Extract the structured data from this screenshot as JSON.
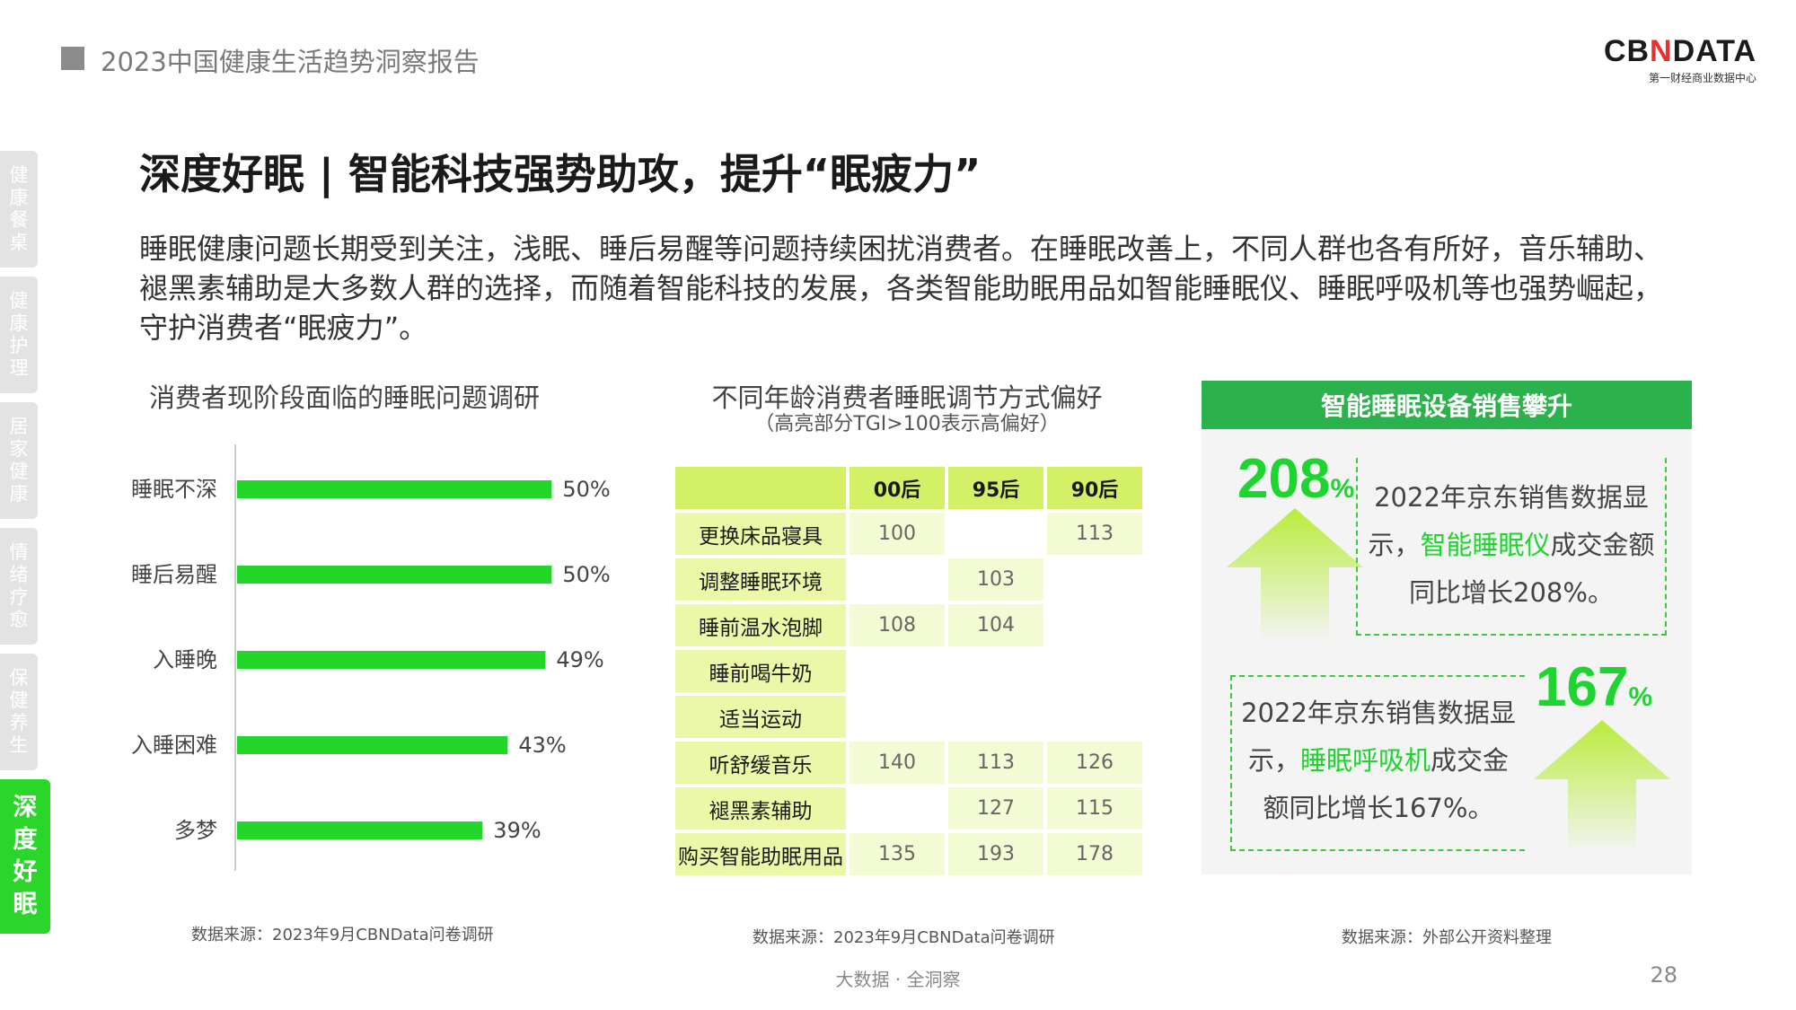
{
  "header": {
    "title": "2023中国健康生活趋势洞察报告"
  },
  "logo": {
    "pre": "CB",
    "mark": "N",
    "post": "DATA",
    "subtitle": "第一财经商业数据中心"
  },
  "sidenav": [
    {
      "label": [
        "健",
        "康",
        "餐",
        "桌"
      ],
      "active": false
    },
    {
      "label": [
        "健",
        "康",
        "护",
        "理"
      ],
      "active": false
    },
    {
      "label": [
        "居",
        "家",
        "健",
        "康"
      ],
      "active": false
    },
    {
      "label": [
        "情",
        "绪",
        "疗",
        "愈"
      ],
      "active": false
    },
    {
      "label": [
        "保",
        "健",
        "养",
        "生"
      ],
      "active": false
    },
    {
      "label": [
        "深",
        "度",
        "好",
        "眠"
      ],
      "active": true
    }
  ],
  "page_title": "深度好眠 | 智能科技强势助攻，提升“眠疲力”",
  "intro": "睡眠健康问题长期受到关注，浅眠、睡后易醒等问题持续困扰消费者。在睡眠改善上，不同人群也各有所好，音乐辅助、褪黑素辅助是大多数人群的选择，而随着智能科技的发展，各类智能助眠用品如智能睡眠仪、睡眠呼吸机等也强势崛起，守护消费者“眠疲力”。",
  "chart_data": {
    "type": "bar",
    "orientation": "horizontal",
    "title": "消费者现阶段面临的睡眠问题调研",
    "categories": [
      "睡眠不深",
      "睡后易醒",
      "入睡晚",
      "入睡困难",
      "多梦"
    ],
    "values": [
      50,
      50,
      49,
      43,
      39
    ],
    "value_labels": [
      "50%",
      "50%",
      "49%",
      "43%",
      "39%"
    ],
    "xlim": [
      0,
      100
    ],
    "color": "#22d62a",
    "grid": false
  },
  "chart_source": "数据来源：2023年9月CBNData问卷调研",
  "table": {
    "title": "不同年龄消费者睡眠调节方式偏好",
    "subtitle": "（高亮部分TGI>100表示高偏好）",
    "columns": [
      "00后",
      "95后",
      "90后"
    ],
    "rows": [
      {
        "label": "更换床品寝具",
        "values": [
          "100",
          "",
          "113"
        ]
      },
      {
        "label": "调整睡眠环境",
        "values": [
          "",
          "103",
          ""
        ]
      },
      {
        "label": "睡前温水泡脚",
        "values": [
          "108",
          "104",
          ""
        ]
      },
      {
        "label": "睡前喝牛奶",
        "values": [
          "",
          "",
          ""
        ]
      },
      {
        "label": "适当运动",
        "values": [
          "",
          "",
          ""
        ]
      },
      {
        "label": "听舒缓音乐",
        "values": [
          "140",
          "113",
          "126"
        ]
      },
      {
        "label": "褪黑素辅助",
        "values": [
          "",
          "127",
          "115"
        ]
      },
      {
        "label": "购买智能助眠用品",
        "values": [
          "135",
          "193",
          "178"
        ]
      }
    ],
    "source": "数据来源：2023年9月CBNData问卷调研"
  },
  "panel": {
    "title": "智能睡眠设备销售攀升",
    "stat1": {
      "number": "208",
      "unit": "%",
      "text_pre": "2022年京东销售数据显示，",
      "highlight": "智能睡眠仪",
      "text_post": "成交金额同比增长208%。"
    },
    "stat2": {
      "number": "167",
      "unit": "%",
      "text_pre": "2022年京东销售数据显示，",
      "highlight": "睡眠呼吸机",
      "text_post": "成交金额同比增长167%。"
    },
    "source": "数据来源：外部公开资料整理"
  },
  "footer": {
    "tagline": "大数据 · 全洞察",
    "page": "28"
  }
}
